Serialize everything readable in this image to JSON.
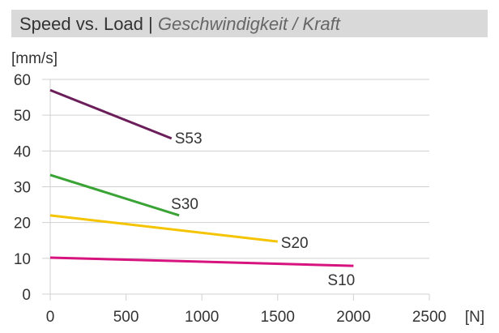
{
  "chart_data": {
    "type": "line",
    "title": "Speed vs. Load",
    "subtitle": "Geschwindigkeit / Kraft",
    "title_separator": "|",
    "xlabel": "[N]",
    "ylabel": "[mm/s]",
    "xlim": [
      0,
      2500
    ],
    "ylim": [
      0,
      60
    ],
    "xticks": [
      "0",
      "500",
      "1000",
      "1500",
      "2000",
      "2500"
    ],
    "yticks": [
      "0",
      "10",
      "20",
      "30",
      "40",
      "50",
      "60"
    ],
    "grid": "horizontal",
    "series": [
      {
        "name": "S53",
        "color": "#6b1f5a",
        "x": [
          0,
          800
        ],
        "y": [
          57,
          43.5
        ]
      },
      {
        "name": "S30",
        "color": "#3aa335",
        "x": [
          0,
          850
        ],
        "y": [
          33.3,
          22
        ]
      },
      {
        "name": "S20",
        "color": "#f5c400",
        "x": [
          0,
          1500
        ],
        "y": [
          22,
          14.7
        ]
      },
      {
        "name": "S10",
        "color": "#d6137e",
        "x": [
          0,
          2000
        ],
        "y": [
          10.2,
          7.9
        ]
      }
    ]
  }
}
